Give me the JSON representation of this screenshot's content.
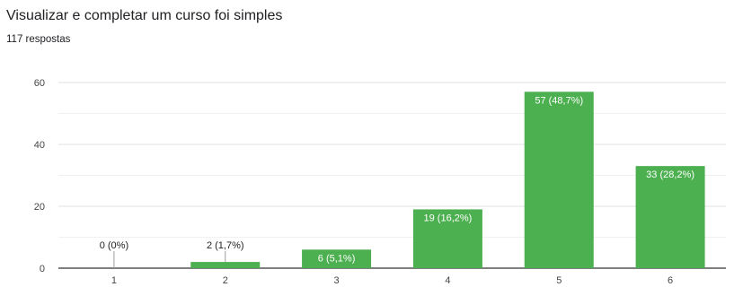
{
  "header": {
    "title": "Visualizar e completar um curso foi simples",
    "responses": "117 respostas"
  },
  "chart_data": {
    "type": "bar",
    "title": "Visualizar e completar um curso foi simples",
    "subtitle": "117 respostas",
    "categories": [
      "1",
      "2",
      "3",
      "4",
      "5",
      "6"
    ],
    "values": [
      0,
      2,
      6,
      19,
      57,
      33
    ],
    "data_labels": [
      "0 (0%)",
      "2 (1,7%)",
      "6 (5,1%)",
      "19 (16,2%)",
      "57 (48,7%)",
      "33 (28,2%)"
    ],
    "y_ticks": [
      0,
      20,
      40,
      60
    ],
    "ylim": [
      0,
      60
    ],
    "xlabel": "",
    "ylabel": "",
    "grid": true,
    "bar_color": "#4caf50",
    "label_inside_color": "#ffffff",
    "label_outside_color": "#202124"
  }
}
